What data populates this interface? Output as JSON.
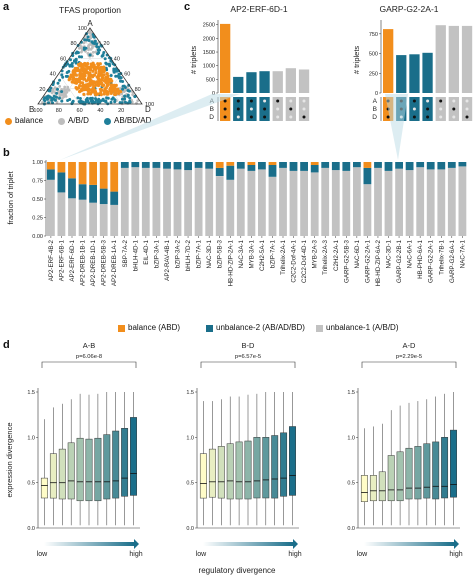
{
  "panel_labels": [
    "a",
    "b",
    "c",
    "d"
  ],
  "colors": {
    "balance": "#f28e1c",
    "unbalance2": "#1a6e8a",
    "unbalance1": "#c2c2c2",
    "point_balance": "#f28e1c",
    "point_abd": "#bdbdbd",
    "point_ad": "#1f7f9a"
  },
  "ternary": {
    "title": "TFAS proportion",
    "vertices": [
      "A",
      "B",
      "D"
    ],
    "ticks": [
      "20",
      "40",
      "60",
      "80",
      "100"
    ],
    "legend": [
      {
        "label": "balance",
        "color": "#f28e1c"
      },
      {
        "label": "A/B/D",
        "color": "#bdbdbd"
      },
      {
        "label": "AB/BD/AD",
        "color": "#1f7f9a"
      }
    ]
  },
  "chart_data": [
    {
      "type": "bar",
      "subtype": "stacked-100",
      "title": "",
      "ylabel": "fraction of triplet",
      "ylim": [
        0,
        1
      ],
      "yticks": [
        "0.00",
        "0.25",
        "0.50",
        "0.75",
        "1.00"
      ],
      "categories": [
        "AP2-ERF-4B-2",
        "AP2-ERF-6B-1",
        "AP2-ERF-6D-1",
        "AP2-DREB-1B-1",
        "AP2-DREB-1D-1",
        "AP2-DREB-5B-3",
        "AP2-DREB-1A-1",
        "SBP-7A-2",
        "bHLH-4D-1",
        "EIL-4D-1",
        "bZIP-3A-1",
        "AP2-RAV-4B-1",
        "bZIP-3A-2",
        "bHLH-7D-2",
        "bZIP-7A-1",
        "NAC-3D-1",
        "bZIP-5B-3",
        "HB-HD-ZIP-2A-1",
        "NAC-3A-1",
        "MYB-3A-1",
        "C2H2-5A-1",
        "bZIP-7A-1",
        "Trihelix-2A-1",
        "C2C2-Dof-4A-1",
        "C2C2-Dof-4D-1",
        "MYB-2A-3",
        "Trihelix-2A-3",
        "C2H2-2A-1",
        "GARP-G2-5B-3",
        "NAC-6D-1",
        "GARP-G2-2A-1",
        "HB-HD-ZIP-6A-2",
        "NAC-3D-1",
        "GARP-G2-2B-1",
        "NAC-6A-1",
        "HB-PHD-6A-1",
        "GARP-G2-2A-1",
        "Trihelix-7B-1",
        "GARP-G2-6A-1",
        "NAC-7A-1"
      ],
      "series": [
        {
          "name": "balance (ABD)",
          "color": "#f28e1c",
          "values": [
            0.1,
            0.14,
            0.22,
            0.3,
            0.31,
            0.36,
            0.4,
            0.0,
            0.0,
            0.0,
            0.0,
            0.0,
            0.0,
            0.0,
            0.0,
            0.0,
            0.08,
            0.05,
            0.0,
            0.04,
            0.0,
            0.04,
            0.0,
            0.0,
            0.0,
            0.04,
            0.0,
            0.0,
            0.0,
            0.0,
            0.08,
            0.0,
            0.0,
            0.0,
            0.0,
            0.0,
            0.0,
            0.0,
            0.0,
            0.0
          ]
        },
        {
          "name": "unbalance-2 (AB/AD/BD)",
          "color": "#1a6e8a",
          "values": [
            0.14,
            0.27,
            0.27,
            0.21,
            0.24,
            0.21,
            0.18,
            0.08,
            0.07,
            0.08,
            0.08,
            0.09,
            0.1,
            0.11,
            0.08,
            0.09,
            0.11,
            0.19,
            0.09,
            0.08,
            0.1,
            0.16,
            0.08,
            0.12,
            0.12,
            0.1,
            0.08,
            0.11,
            0.12,
            0.07,
            0.22,
            0.08,
            0.12,
            0.09,
            0.11,
            0.07,
            0.1,
            0.1,
            0.08,
            0.06
          ]
        },
        {
          "name": "unbalance-1 (A/B/D)",
          "color": "#c2c2c2",
          "values": [
            0.76,
            0.59,
            0.51,
            0.49,
            0.45,
            0.43,
            0.42,
            0.92,
            0.93,
            0.92,
            0.92,
            0.91,
            0.9,
            0.89,
            0.92,
            0.91,
            0.81,
            0.76,
            0.91,
            0.88,
            0.9,
            0.8,
            0.92,
            0.88,
            0.88,
            0.86,
            0.92,
            0.89,
            0.88,
            0.93,
            0.7,
            0.92,
            0.88,
            0.91,
            0.89,
            0.93,
            0.9,
            0.9,
            0.92,
            0.94
          ]
        }
      ]
    },
    {
      "type": "bar",
      "title": "AP2-ERF-6D-1",
      "ylabel": "# triplets",
      "ylim": [
        0,
        2600
      ],
      "yticks": [
        "0",
        "500",
        "1000",
        "1500",
        "2000",
        "2500"
      ],
      "row_labels": [
        "A",
        "B",
        "D"
      ],
      "values": [
        2530,
        590,
        760,
        800,
        800,
        910,
        860
      ],
      "bar_colors": [
        "#f28e1c",
        "#1a6e8a",
        "#1a6e8a",
        "#1a6e8a",
        "#c2c2c2",
        "#c2c2c2",
        "#c2c2c2"
      ],
      "presence": [
        [
          1,
          1,
          1,
          0,
          1,
          0,
          0
        ],
        [
          1,
          1,
          0,
          1,
          0,
          1,
          0
        ],
        [
          1,
          0,
          1,
          1,
          0,
          0,
          1
        ]
      ]
    },
    {
      "type": "bar",
      "title": "GARP-G2-2A-1",
      "ylabel": "# triplets",
      "ylim": [
        0,
        900
      ],
      "yticks": [
        "0",
        "250",
        "500",
        "750"
      ],
      "row_labels": [
        "A",
        "B",
        "D"
      ],
      "values": [
        810,
        480,
        490,
        510,
        860,
        850,
        850
      ],
      "bar_colors": [
        "#f28e1c",
        "#1a6e8a",
        "#1a6e8a",
        "#1a6e8a",
        "#c2c2c2",
        "#c2c2c2",
        "#c2c2c2"
      ],
      "presence": [
        [
          1,
          1,
          1,
          0,
          1,
          0,
          0
        ],
        [
          1,
          1,
          0,
          1,
          0,
          1,
          0
        ],
        [
          1,
          0,
          1,
          1,
          0,
          0,
          1
        ]
      ]
    },
    {
      "type": "box",
      "title": "A-B",
      "annotation": "p=6.06e-8",
      "ylabel": "expression divergence",
      "ylim": [
        0,
        1.5
      ],
      "yticks": [
        "0.0",
        "0.5",
        "1.0",
        "1.5"
      ],
      "boxes": [
        [
          0.33,
          0.55
        ],
        [
          0.33,
          0.82
        ],
        [
          0.32,
          0.87
        ],
        [
          0.32,
          0.94
        ],
        [
          0.3,
          0.99
        ],
        [
          0.3,
          0.98
        ],
        [
          0.3,
          0.99
        ],
        [
          0.32,
          1.03
        ],
        [
          0.33,
          1.07
        ],
        [
          0.35,
          1.1
        ],
        [
          0.36,
          1.22
        ]
      ],
      "medians": [
        0.47,
        0.5,
        0.5,
        0.52,
        0.51,
        0.51,
        0.51,
        0.51,
        0.52,
        0.55,
        0.6
      ],
      "lower_whisker": 0.03,
      "upper_whiskers": [
        1.2,
        1.33,
        1.37,
        1.42,
        1.48,
        1.47,
        1.48,
        1.5,
        1.5,
        1.5,
        1.5
      ]
    },
    {
      "type": "box",
      "title": "B-D",
      "annotation": "p=6.57e-5",
      "ylim": [
        0,
        1.5
      ],
      "yticks": [
        "0.0",
        "0.5",
        "1.0",
        "1.5"
      ],
      "boxes": [
        [
          0.33,
          0.82
        ],
        [
          0.34,
          0.87
        ],
        [
          0.33,
          0.9
        ],
        [
          0.32,
          0.93
        ],
        [
          0.32,
          0.95
        ],
        [
          0.32,
          0.96
        ],
        [
          0.33,
          1.0
        ],
        [
          0.33,
          1.0
        ],
        [
          0.33,
          1.02
        ],
        [
          0.35,
          1.05
        ],
        [
          0.36,
          1.12
        ]
      ],
      "medians": [
        0.49,
        0.51,
        0.51,
        0.52,
        0.51,
        0.51,
        0.52,
        0.53,
        0.54,
        0.55,
        0.58
      ],
      "lower_whisker": 0.03,
      "upper_whiskers": [
        1.4,
        1.4,
        1.42,
        1.45,
        1.45,
        1.47,
        1.48,
        1.5,
        1.5,
        1.5,
        1.5
      ]
    },
    {
      "type": "box",
      "title": "A-D",
      "annotation": "p=2.29e-5",
      "ylim": [
        0,
        1.5
      ],
      "yticks": [
        "0.0",
        "0.5",
        "1.0",
        "1.5"
      ],
      "boxes": [
        [
          0.29,
          0.58
        ],
        [
          0.3,
          0.58
        ],
        [
          0.3,
          0.62
        ],
        [
          0.3,
          0.8
        ],
        [
          0.3,
          0.84
        ],
        [
          0.32,
          0.88
        ],
        [
          0.32,
          0.9
        ],
        [
          0.33,
          0.93
        ],
        [
          0.32,
          0.95
        ],
        [
          0.33,
          1.0
        ],
        [
          0.34,
          1.08
        ]
      ],
      "medians": [
        0.39,
        0.41,
        0.41,
        0.42,
        0.42,
        0.44,
        0.44,
        0.45,
        0.46,
        0.46,
        0.48
      ],
      "lower_whisker": 0.03,
      "upper_whiskers": [
        1.1,
        1.12,
        1.15,
        1.3,
        1.35,
        1.38,
        1.4,
        1.42,
        1.45,
        1.48,
        1.5
      ]
    }
  ],
  "legend_b": [
    {
      "label": "balance (ABD)",
      "color": "#f28e1c"
    },
    {
      "label": "unbalance-2 (AB/AD/BD)",
      "color": "#1a6e8a"
    },
    {
      "label": "unbalance-1 (A/B/D)",
      "color": "#c2c2c2"
    }
  ],
  "panel_d": {
    "gradient_low": "low",
    "gradient_high": "high",
    "xlabel": "regulatory divergence"
  }
}
